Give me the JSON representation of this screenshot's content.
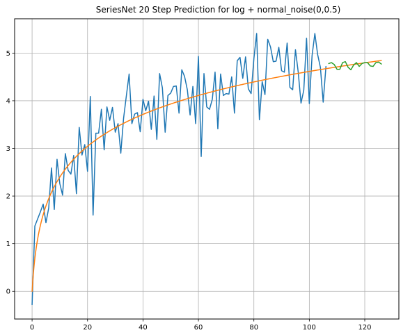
{
  "chart_data": {
    "type": "line",
    "title": "SeriesNet 20 Step Prediction for log + normal_noise(0,0.5)",
    "xlabel": "",
    "ylabel": "",
    "xlim": [
      -6.3,
      132.3
    ],
    "ylim": [
      -0.58,
      5.72
    ],
    "x_ticks": [
      0,
      20,
      40,
      60,
      80,
      100,
      120
    ],
    "y_ticks": [
      0,
      1,
      2,
      3,
      4,
      5
    ],
    "grid": true,
    "legend": "none",
    "colors": {
      "noisy": "#1f77b4",
      "log": "#ff7f0e",
      "prediction": "#2ca02c"
    },
    "series": [
      {
        "key": "noisy",
        "x_start": 0,
        "values": [
          -0.28,
          1.37,
          1.52,
          1.67,
          1.83,
          1.44,
          1.75,
          2.59,
          1.72,
          2.77,
          2.26,
          2.02,
          2.89,
          2.54,
          2.46,
          2.85,
          2.05,
          3.44,
          2.86,
          3.08,
          2.52,
          4.09,
          1.6,
          3.32,
          3.32,
          3.82,
          2.97,
          3.87,
          3.59,
          3.86,
          3.34,
          3.52,
          2.9,
          3.63,
          4.1,
          4.56,
          3.52,
          3.72,
          3.75,
          3.35,
          4.03,
          3.79,
          3.99,
          3.4,
          4.1,
          3.19,
          4.57,
          4.27,
          3.34,
          4.11,
          4.16,
          4.3,
          4.31,
          3.74,
          4.65,
          4.51,
          4.23,
          3.7,
          4.3,
          3.52,
          4.93,
          2.83,
          4.57,
          3.87,
          3.82,
          4.03,
          4.6,
          3.41,
          4.56,
          4.11,
          4.15,
          4.14,
          4.5,
          3.74,
          4.84,
          4.91,
          4.47,
          4.92,
          4.25,
          4.15,
          4.88,
          5.41,
          3.6,
          4.4,
          4.13,
          5.29,
          5.13,
          4.82,
          4.83,
          5.12,
          4.63,
          4.6,
          5.21,
          4.28,
          4.23,
          5.07,
          4.6,
          3.95,
          4.22,
          5.31,
          3.94,
          4.95,
          5.41,
          4.97,
          4.7,
          3.97,
          4.72
        ]
      },
      {
        "key": "log",
        "function": "ln(x+1)",
        "x_start": 0,
        "x_end": 126
      },
      {
        "key": "prediction",
        "x_start": 107,
        "values": [
          4.78,
          4.8,
          4.76,
          4.66,
          4.66,
          4.8,
          4.82,
          4.7,
          4.65,
          4.75,
          4.8,
          4.72,
          4.78,
          4.8,
          4.8,
          4.73,
          4.72,
          4.8,
          4.81,
          4.77
        ]
      }
    ]
  }
}
